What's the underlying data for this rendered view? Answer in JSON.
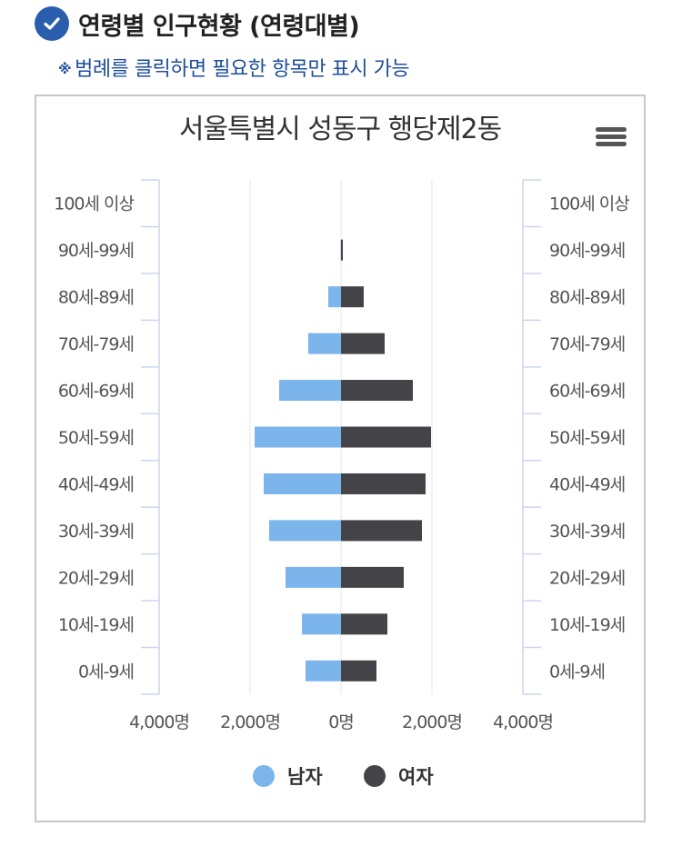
{
  "header": {
    "title": "연령별 인구현황 (연령대별)",
    "notice_mark": "※",
    "notice": "범례를 클릭하면 필요한 항목만 표시 가능"
  },
  "colors": {
    "male": "#7cb5ec",
    "female": "#434348",
    "accent": "#2a5dac",
    "notice": "#1f4e9c"
  },
  "icons": {
    "check": "check-circle-icon",
    "menu": "hamburger-menu-icon",
    "legend_marker": "circle"
  },
  "chart_data": {
    "type": "bar",
    "orientation": "horizontal",
    "layout": "population-pyramid",
    "title": "서울특별시 성동구 행당제2동",
    "categories": [
      "100세 이상",
      "90세-99세",
      "80세-89세",
      "70세-79세",
      "60세-69세",
      "50세-59세",
      "40세-49세",
      "30세-39세",
      "20세-29세",
      "10세-19세",
      "0세-9세"
    ],
    "series": [
      {
        "name": "남자",
        "side": "left",
        "values": [
          0,
          10,
          280,
          720,
          1360,
          1900,
          1700,
          1580,
          1220,
          860,
          780
        ]
      },
      {
        "name": "여자",
        "side": "right",
        "values": [
          0,
          40,
          500,
          960,
          1580,
          1980,
          1860,
          1780,
          1380,
          1020,
          780
        ]
      }
    ],
    "xlim": [
      -4000,
      4000
    ],
    "x_ticks": [
      -4000,
      -2000,
      0,
      2000,
      4000
    ],
    "x_tick_labels": [
      "4,000명",
      "2,000명",
      "0명",
      "2,000명",
      "4,000명"
    ],
    "gridlines": "vertical",
    "legend_position": "bottom-center",
    "legend": [
      "남자",
      "여자"
    ]
  }
}
